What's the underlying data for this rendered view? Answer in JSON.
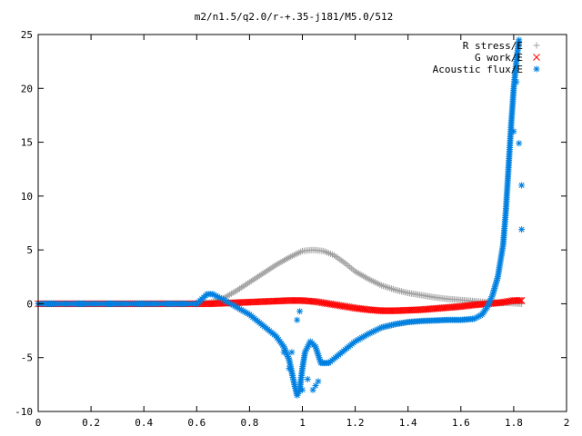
{
  "chart_data": {
    "type": "scatter",
    "title": "m2/n1.5/q2.0/r-+.35-j181/M5.0/512",
    "xlabel": "",
    "ylabel": "",
    "xlim": [
      0,
      2
    ],
    "ylim": [
      -10,
      25
    ],
    "x_ticks": [
      "0",
      "0.2",
      "0.4",
      "0.6",
      "0.8",
      "1",
      "1.2",
      "1.4",
      "1.6",
      "1.8",
      "2"
    ],
    "y_ticks": [
      "-10",
      "-5",
      "0",
      "5",
      "10",
      "15",
      "20",
      "25"
    ],
    "grid": false,
    "legend_position": "top-right",
    "series": [
      {
        "name": "R stress/E",
        "marker": "plus",
        "color": "#a0a0a0",
        "x": [
          0.0,
          0.2,
          0.4,
          0.6,
          0.65,
          0.7,
          0.75,
          0.8,
          0.85,
          0.9,
          0.95,
          1.0,
          1.04,
          1.08,
          1.12,
          1.16,
          1.2,
          1.25,
          1.3,
          1.35,
          1.4,
          1.45,
          1.5,
          1.55,
          1.6,
          1.65,
          1.7,
          1.75,
          1.8,
          1.83
        ],
        "y": [
          0.0,
          0.0,
          0.0,
          0.0,
          0.1,
          0.5,
          1.2,
          2.0,
          2.8,
          3.6,
          4.3,
          4.9,
          5.0,
          4.9,
          4.5,
          3.8,
          3.0,
          2.3,
          1.7,
          1.3,
          1.0,
          0.8,
          0.6,
          0.45,
          0.35,
          0.25,
          0.15,
          0.1,
          0.05,
          0.0
        ]
      },
      {
        "name": "G work/E",
        "marker": "cross",
        "color": "#ff0000",
        "x": [
          0.0,
          0.2,
          0.4,
          0.6,
          0.65,
          0.7,
          0.75,
          0.8,
          0.85,
          0.9,
          0.95,
          1.0,
          1.05,
          1.1,
          1.15,
          1.2,
          1.25,
          1.3,
          1.35,
          1.4,
          1.45,
          1.5,
          1.55,
          1.6,
          1.65,
          1.7,
          1.75,
          1.8,
          1.83
        ],
        "y": [
          0.0,
          0.0,
          0.0,
          0.0,
          0.0,
          0.05,
          0.1,
          0.15,
          0.2,
          0.25,
          0.3,
          0.3,
          0.2,
          0.0,
          -0.2,
          -0.4,
          -0.55,
          -0.65,
          -0.65,
          -0.6,
          -0.55,
          -0.45,
          -0.35,
          -0.25,
          -0.1,
          0.0,
          0.1,
          0.3,
          0.3
        ]
      },
      {
        "name": "Acoustic flux/E",
        "marker": "star",
        "color": "#0080e0",
        "x": [
          0.0,
          0.2,
          0.4,
          0.6,
          0.64,
          0.66,
          0.7,
          0.75,
          0.8,
          0.85,
          0.9,
          0.93,
          0.95,
          0.97,
          0.98,
          0.99,
          1.0,
          1.01,
          1.02,
          1.03,
          1.05,
          1.07,
          1.1,
          1.15,
          1.2,
          1.25,
          1.3,
          1.35,
          1.4,
          1.45,
          1.5,
          1.55,
          1.6,
          1.65,
          1.68,
          1.7,
          1.72,
          1.74,
          1.76,
          1.77,
          1.78,
          1.79,
          1.8,
          1.81,
          1.82
        ],
        "y": [
          0.0,
          0.0,
          0.0,
          0.0,
          0.9,
          0.9,
          0.4,
          -0.3,
          -1.0,
          -2.0,
          -3.0,
          -4.0,
          -5.2,
          -7.5,
          -8.5,
          -8.0,
          -6.0,
          -4.5,
          -4.0,
          -3.5,
          -4.0,
          -5.5,
          -5.5,
          -4.5,
          -3.5,
          -2.8,
          -2.2,
          -1.9,
          -1.7,
          -1.6,
          -1.55,
          -1.5,
          -1.5,
          -1.4,
          -1.0,
          -0.3,
          0.8,
          2.5,
          5.5,
          8.5,
          12.5,
          16.5,
          20.0,
          22.5,
          24.5
        ],
        "x_extra": [
          0.93,
          0.95,
          0.96,
          0.98,
          0.99,
          1.0,
          1.02,
          1.04,
          1.05,
          1.06,
          1.8,
          1.81,
          1.82,
          1.83,
          1.83
        ],
        "y_extra": [
          -4.5,
          -6.0,
          -4.5,
          -1.5,
          -0.7,
          -8.0,
          -7.0,
          -8.0,
          -7.6,
          -7.2,
          16.0,
          20.6,
          14.9,
          11.0,
          6.9
        ]
      }
    ]
  }
}
